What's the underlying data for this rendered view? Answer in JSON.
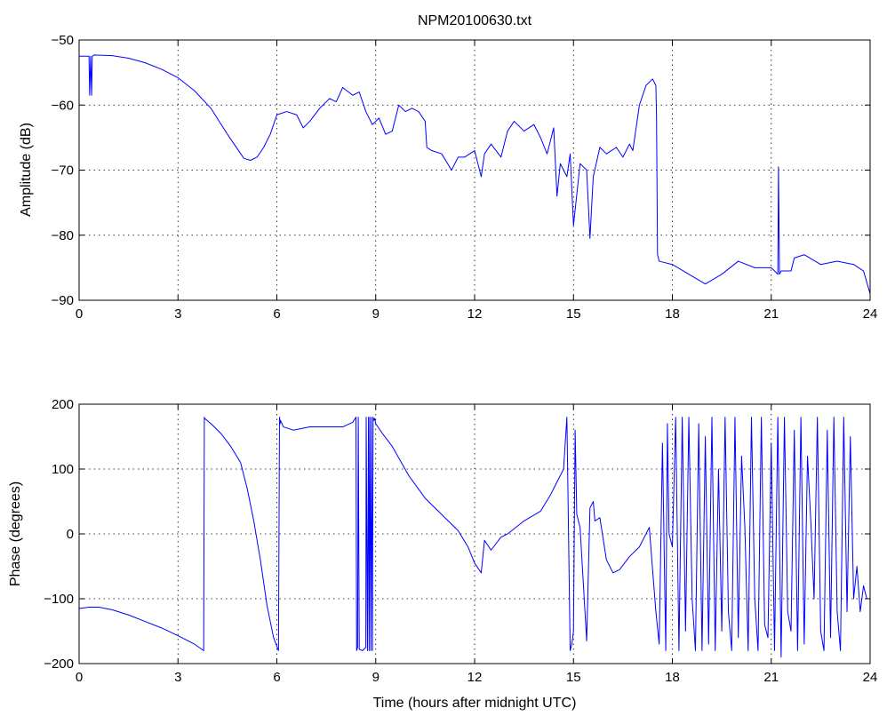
{
  "chart_data": [
    {
      "type": "line",
      "title": "NPM20100630.txt",
      "xlabel": "",
      "ylabel": "Amplitude (dB)",
      "xlim": [
        0,
        24
      ],
      "ylim": [
        -90,
        -50
      ],
      "xticks": [
        0,
        3,
        6,
        9,
        12,
        15,
        18,
        21,
        24
      ],
      "yticks": [
        -90,
        -80,
        -70,
        -60,
        -50
      ],
      "xtick_labels": [
        "0",
        "3",
        "6",
        "9",
        "12",
        "15",
        "18",
        "21",
        "24"
      ],
      "ytick_labels": [
        "−90",
        "−80",
        "−70",
        "−60",
        "−50"
      ],
      "grid": true,
      "color": "#0000ff",
      "series": [
        {
          "x": [
            0,
            0.3,
            0.32,
            0.35,
            0.38,
            0.4,
            0.45,
            1.0,
            1.5,
            2.0,
            2.5,
            3.0,
            3.5,
            4.0,
            4.5,
            5.0,
            5.2,
            5.4,
            5.6,
            5.8,
            6.0,
            6.3,
            6.6,
            6.8,
            7.0,
            7.3,
            7.6,
            7.8,
            8.0,
            8.3,
            8.5,
            8.7,
            8.9,
            9.1,
            9.3,
            9.5,
            9.7,
            9.9,
            10.1,
            10.3,
            10.5,
            10.55,
            10.7,
            11.0,
            11.3,
            11.5,
            11.7,
            12.0,
            12.2,
            12.3,
            12.5,
            12.8,
            13.0,
            13.2,
            13.5,
            13.8,
            14.0,
            14.2,
            14.4,
            14.5,
            14.6,
            14.8,
            14.9,
            15.0,
            15.2,
            15.4,
            15.5,
            15.6,
            15.8,
            16.0,
            16.3,
            16.5,
            16.7,
            16.8,
            17.0,
            17.2,
            17.4,
            17.5,
            17.52,
            17.55,
            17.6,
            18.0,
            18.5,
            19.0,
            19.5,
            20.0,
            20.5,
            21.0,
            21.2,
            21.22,
            21.25,
            21.3,
            21.6,
            21.7,
            22.0,
            22.5,
            23.0,
            23.5,
            23.8,
            24.0
          ],
          "y": [
            -52.5,
            -52.5,
            -58.5,
            -52.5,
            -58.5,
            -52.5,
            -52.3,
            -52.4,
            -52.8,
            -53.5,
            -54.5,
            -55.8,
            -57.8,
            -60.5,
            -64.5,
            -68.2,
            -68.5,
            -68.0,
            -66.5,
            -64.5,
            -61.5,
            -61.0,
            -61.5,
            -63.5,
            -62.5,
            -60.5,
            -59.0,
            -59.5,
            -57.3,
            -58.5,
            -58.0,
            -61.0,
            -63.0,
            -62.0,
            -64.5,
            -64.0,
            -60.0,
            -61.0,
            -60.5,
            -61.0,
            -62.5,
            -66.5,
            -67.0,
            -67.5,
            -70.0,
            -68.0,
            -68.0,
            -67.0,
            -71.0,
            -67.5,
            -66.0,
            -68.0,
            -64.0,
            -62.5,
            -64.0,
            -63.0,
            -65.0,
            -67.5,
            -63.5,
            -74.0,
            -69.0,
            -71.0,
            -67.5,
            -78.5,
            -69.0,
            -70.0,
            -80.5,
            -71.0,
            -66.5,
            -67.5,
            -66.5,
            -68.0,
            -66.0,
            -67.0,
            -60.0,
            -57.0,
            -56.0,
            -57.0,
            -62.0,
            -83.0,
            -84.0,
            -84.5,
            -86.0,
            -87.5,
            -86.0,
            -84.0,
            -85.0,
            -85.0,
            -86.0,
            -69.5,
            -86.0,
            -85.5,
            -85.5,
            -83.5,
            -83.0,
            -84.5,
            -84.0,
            -84.5,
            -85.5,
            -89.0
          ]
        }
      ]
    },
    {
      "type": "line",
      "title": "",
      "xlabel": "Time (hours after midnight UTC)",
      "ylabel": "Phase (degrees)",
      "xlim": [
        0,
        24
      ],
      "ylim": [
        -200,
        200
      ],
      "xticks": [
        0,
        3,
        6,
        9,
        12,
        15,
        18,
        21,
        24
      ],
      "yticks": [
        -200,
        -100,
        0,
        100,
        200
      ],
      "xtick_labels": [
        "0",
        "3",
        "6",
        "9",
        "12",
        "15",
        "18",
        "21",
        "24"
      ],
      "ytick_labels": [
        "−200",
        "−100",
        "0",
        "100",
        "200"
      ],
      "grid": true,
      "color": "#0000ff",
      "series": [
        {
          "x": [
            0,
            0.3,
            0.6,
            1.0,
            1.5,
            2.0,
            2.5,
            3.0,
            3.5,
            3.78,
            3.8,
            3.81,
            4.0,
            4.3,
            4.6,
            4.9,
            5.1,
            5.3,
            5.5,
            5.7,
            5.9,
            6.05,
            6.08,
            6.1,
            6.11,
            6.2,
            6.5,
            7.0,
            7.5,
            8.0,
            8.3,
            8.4,
            8.42,
            8.45,
            8.47,
            8.5,
            8.6,
            8.7,
            8.71,
            8.75,
            8.78,
            8.8,
            8.82,
            8.85,
            8.87,
            8.9,
            8.92,
            8.95,
            8.97,
            9.0,
            9.2,
            9.5,
            10.0,
            10.5,
            11.0,
            11.5,
            11.8,
            12.0,
            12.2,
            12.3,
            12.5,
            12.8,
            13.0,
            13.5,
            14.0,
            14.3,
            14.5,
            14.7,
            14.8,
            14.9,
            14.95,
            15.0,
            15.05,
            15.1,
            15.2,
            15.4,
            15.5,
            15.6,
            15.65,
            15.8,
            16.0,
            16.2,
            16.4,
            16.7,
            17.0,
            17.3,
            17.5,
            17.6,
            17.7,
            17.8,
            17.85,
            17.9,
            18.0,
            18.1,
            18.2,
            18.3,
            18.4,
            18.5,
            18.6,
            18.7,
            18.8,
            18.9,
            19.0,
            19.1,
            19.2,
            19.3,
            19.4,
            19.5,
            19.6,
            19.7,
            19.8,
            19.9,
            20.0,
            20.1,
            20.2,
            20.3,
            20.4,
            20.5,
            20.6,
            20.7,
            20.8,
            20.9,
            21.0,
            21.1,
            21.2,
            21.3,
            21.4,
            21.5,
            21.6,
            21.7,
            21.8,
            21.9,
            22.0,
            22.1,
            22.2,
            22.3,
            22.4,
            22.5,
            22.6,
            22.7,
            22.8,
            22.9,
            23.0,
            23.1,
            23.2,
            23.3,
            23.4,
            23.5,
            23.6,
            23.7,
            23.8,
            23.9,
            24.0
          ],
          "y": [
            -115,
            -113,
            -113,
            -117,
            -125,
            -135,
            -145,
            -157,
            -170,
            -180,
            180,
            178,
            170,
            155,
            135,
            110,
            70,
            20,
            -40,
            -110,
            -160,
            -180,
            180,
            170,
            175,
            165,
            160,
            165,
            165,
            165,
            172,
            180,
            -180,
            -175,
            180,
            -178,
            -180,
            -175,
            180,
            -180,
            180,
            -180,
            180,
            -180,
            180,
            -180,
            180,
            175,
            178,
            170,
            155,
            135,
            90,
            55,
            30,
            5,
            -20,
            -45,
            -60,
            -10,
            -25,
            -5,
            0,
            20,
            35,
            60,
            80,
            100,
            180,
            -180,
            -170,
            -150,
            160,
            30,
            10,
            -165,
            40,
            50,
            20,
            25,
            -40,
            -60,
            -55,
            -35,
            -20,
            10,
            -120,
            -170,
            140,
            -180,
            170,
            0,
            -20,
            180,
            -180,
            180,
            -150,
            180,
            -100,
            -180,
            170,
            -180,
            150,
            -170,
            180,
            -180,
            100,
            -150,
            180,
            -120,
            -180,
            180,
            -160,
            120,
            10,
            -180,
            180,
            -100,
            -180,
            180,
            -140,
            -160,
            140,
            -180,
            180,
            -190,
            180,
            -120,
            -150,
            160,
            -180,
            180,
            -170,
            120,
            20,
            -100,
            180,
            -150,
            -180,
            160,
            -160,
            180,
            -120,
            -180,
            180,
            -120,
            150,
            -100,
            -50,
            -120,
            -80,
            -100,
            -100
          ]
        }
      ]
    }
  ]
}
